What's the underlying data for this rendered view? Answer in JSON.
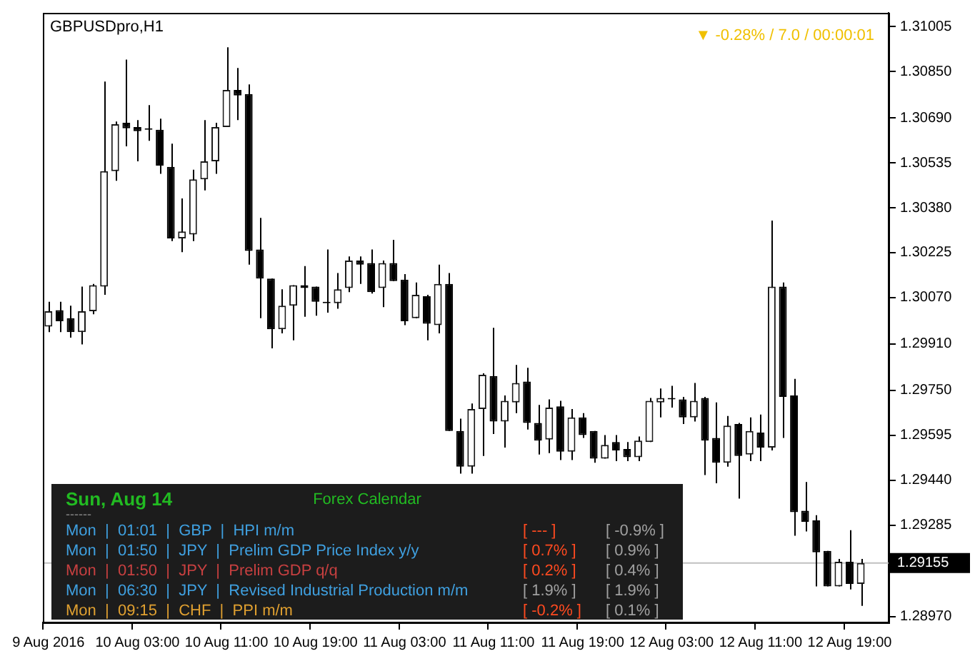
{
  "chart_data": {
    "type": "candlestick",
    "title": "GBPUSDpro,H1",
    "categories": [
      "9 Aug 2016",
      null,
      null,
      null,
      null,
      null,
      null,
      null,
      "10 Aug 03:00",
      null,
      null,
      null,
      null,
      null,
      null,
      null,
      "10 Aug 11:00",
      null,
      null,
      null,
      null,
      null,
      null,
      null,
      "10 Aug 19:00",
      null,
      null,
      null,
      null,
      null,
      null,
      null,
      "11 Aug 03:00",
      null,
      null,
      null,
      null,
      null,
      null,
      null,
      "11 Aug 11:00",
      null,
      null,
      null,
      null,
      null,
      null,
      null,
      "11 Aug 19:00",
      null,
      null,
      null,
      null,
      null,
      null,
      null,
      "12 Aug 03:00",
      null,
      null,
      null,
      null,
      null,
      null,
      null,
      "12 Aug 11:00",
      null,
      null,
      null,
      null,
      null,
      null,
      null,
      "12 Aug 19:00",
      null,
      null,
      null
    ],
    "ohlc": [
      [
        1.2997,
        1.30056,
        1.29951,
        1.30023
      ],
      [
        1.30027,
        1.30056,
        1.29951,
        1.29989
      ],
      [
        1.29999,
        1.30042,
        1.29932,
        1.29951
      ],
      [
        1.29951,
        1.30108,
        1.29909,
        1.30023
      ],
      [
        1.30023,
        1.30117,
        1.30013,
        1.30113
      ],
      [
        1.30108,
        1.30815,
        1.3008,
        1.30506
      ],
      [
        1.30506,
        1.30677,
        1.30473,
        1.30668
      ],
      [
        1.30673,
        1.30891,
        1.30592,
        1.30654
      ],
      [
        1.30658,
        1.30682,
        1.3054,
        1.30644
      ],
      [
        1.30649,
        1.30734,
        1.30611,
        1.30649
      ],
      [
        1.30649,
        1.30687,
        1.30497,
        1.30525
      ],
      [
        1.30521,
        1.30601,
        1.30265,
        1.30274
      ],
      [
        1.30274,
        1.30412,
        1.30227,
        1.30298
      ],
      [
        1.30288,
        1.30511,
        1.30265,
        1.30478
      ],
      [
        1.30478,
        1.30682,
        1.3044,
        1.3054
      ],
      [
        1.3054,
        1.30673,
        1.30497,
        1.30658
      ],
      [
        1.30658,
        1.30933,
        1.30658,
        1.30786
      ],
      [
        1.30786,
        1.30862,
        1.30682,
        1.30767
      ],
      [
        1.30772,
        1.30805,
        1.30184,
        1.30231
      ],
      [
        1.30236,
        1.30345,
        1.29999,
        1.30136
      ],
      [
        1.30136,
        1.30136,
        1.29895,
        1.29961
      ],
      [
        1.29961,
        1.30099,
        1.29947,
        1.30042
      ],
      [
        1.30042,
        1.30113,
        1.29923,
        1.30113
      ],
      [
        1.30113,
        1.30179,
        1.30004,
        1.30103
      ],
      [
        1.30108,
        1.30108,
        1.30008,
        1.30056
      ],
      [
        1.30056,
        1.30236,
        1.30018,
        1.30051
      ],
      [
        1.30051,
        1.30155,
        1.30032,
        1.30099
      ],
      [
        1.30103,
        1.30212,
        1.30089,
        1.30198
      ],
      [
        1.30198,
        1.30212,
        1.30117,
        1.30184
      ],
      [
        1.30189,
        1.30236,
        1.30084,
        1.30089
      ],
      [
        1.30103,
        1.30198,
        1.30037,
        1.30189
      ],
      [
        1.30189,
        1.30269,
        1.30127,
        1.30127
      ],
      [
        1.30132,
        1.30151,
        1.29975,
        1.29989
      ],
      [
        1.29999,
        1.30122,
        1.29999,
        1.3008
      ],
      [
        1.30075,
        1.3008,
        1.29923,
        1.2998
      ],
      [
        1.29975,
        1.30184,
        1.29947,
        1.30117
      ],
      [
        1.30117,
        1.30155,
        1.2961,
        1.2961
      ],
      [
        1.2961,
        1.29653,
        1.29463,
        1.29487
      ],
      [
        1.29487,
        1.29705,
        1.29463,
        1.29686
      ],
      [
        1.29686,
        1.29809,
        1.29524,
        1.29804
      ],
      [
        1.298,
        1.29966,
        1.296,
        1.29643
      ],
      [
        1.29643,
        1.29733,
        1.29553,
        1.29714
      ],
      [
        1.29709,
        1.29838,
        1.29672,
        1.29776
      ],
      [
        1.29781,
        1.29828,
        1.29615,
        1.29638
      ],
      [
        1.29638,
        1.297,
        1.29529,
        1.29577
      ],
      [
        1.29581,
        1.29719,
        1.29534,
        1.29691
      ],
      [
        1.29695,
        1.29714,
        1.2951,
        1.29539
      ],
      [
        1.29539,
        1.29686,
        1.2951,
        1.29657
      ],
      [
        1.29657,
        1.29672,
        1.29586,
        1.29596
      ],
      [
        1.2961,
        1.2961,
        1.29501,
        1.29515
      ],
      [
        1.29515,
        1.29596,
        1.29515,
        1.29562
      ],
      [
        1.29572,
        1.29596,
        1.29506,
        1.29543
      ],
      [
        1.29548,
        1.29572,
        1.29506,
        1.2952
      ],
      [
        1.2952,
        1.29591,
        1.29506,
        1.29577
      ],
      [
        1.29572,
        1.29724,
        1.29572,
        1.29714
      ],
      [
        1.29709,
        1.29757,
        1.29657,
        1.29724
      ],
      [
        1.29719,
        1.29766,
        1.29691,
        1.29719
      ],
      [
        1.29719,
        1.29728,
        1.29634,
        1.29657
      ],
      [
        1.29657,
        1.29776,
        1.29643,
        1.29714
      ],
      [
        1.29724,
        1.29728,
        1.29458,
        1.29577
      ],
      [
        1.29586,
        1.29709,
        1.2943,
        1.29501
      ],
      [
        1.29501,
        1.29662,
        1.29487,
        1.29629
      ],
      [
        1.29634,
        1.29638,
        1.29377,
        1.29524
      ],
      [
        1.29529,
        1.29657,
        1.29506,
        1.2961
      ],
      [
        1.29605,
        1.29667,
        1.29506,
        1.29553
      ],
      [
        1.29553,
        1.30336,
        1.29543,
        1.30108
      ],
      [
        1.30108,
        1.30122,
        1.29586,
        1.29728
      ],
      [
        1.29733,
        1.2979,
        1.29249,
        1.2933
      ],
      [
        1.29335,
        1.29434,
        1.29264,
        1.29297
      ],
      [
        1.29302,
        1.2932,
        1.29074,
        1.29192
      ],
      [
        1.29197,
        1.29197,
        1.29074,
        1.29074
      ],
      [
        1.29074,
        1.29169,
        1.29074,
        1.29159
      ],
      [
        1.29159,
        1.29268,
        1.29064,
        1.29083
      ],
      [
        1.29083,
        1.29169,
        1.29007,
        1.29155
      ],
      null,
      null
    ],
    "ylim": [
      1.2895,
      1.31052
    ],
    "yticks": [
      {
        "value": 1.2897,
        "label": "1.28970"
      },
      {
        "value": 1.2913,
        "label": null
      },
      {
        "value": 1.29285,
        "label": "1.29285"
      },
      {
        "value": 1.2944,
        "label": "1.29440"
      },
      {
        "value": 1.29595,
        "label": "1.29595"
      },
      {
        "value": 1.2975,
        "label": "1.29750"
      },
      {
        "value": 1.2991,
        "label": "1.29910"
      },
      {
        "value": 1.3007,
        "label": "1.30070"
      },
      {
        "value": 1.30225,
        "label": "1.30225"
      },
      {
        "value": 1.3038,
        "label": "1.30380"
      },
      {
        "value": 1.30535,
        "label": "1.30535"
      },
      {
        "value": 1.3069,
        "label": "1.30690"
      },
      {
        "value": 1.3085,
        "label": "1.30850"
      },
      {
        "value": 1.31005,
        "label": "1.31005"
      }
    ],
    "ref_lines": [
      {
        "axis": "y",
        "value": 1.29155,
        "label": "1.29155",
        "color": "#c0c0c0"
      }
    ],
    "annotations": [
      "▼ -0.28% / 7.0 / 00:00:01",
      "Sun, Aug 14",
      "Forex Calendar",
      "------",
      "Mon  |  01:01  |  GBP  |  HPI m/m",
      "[ --- ]",
      "[ -0.9% ]",
      "Mon  |  01:50  |  JPY  |  Prelim GDP Price Index y/y",
      "[ 0.7% ]",
      "[ 0.9% ]",
      "Mon  |  01:50  |  JPY  |  Prelim GDP q/q",
      "[ 0.2% ]",
      "[ 0.4% ]",
      "Mon  |  06:30  |  JPY  |  Revised Industrial Production m/m",
      "[ 1.9% ]",
      "[ 1.9% ]",
      "Mon  |  09:15  |  CHF  |  PPI m/m",
      "[ -0.2% ]",
      "[ 0.1% ]"
    ]
  }
}
